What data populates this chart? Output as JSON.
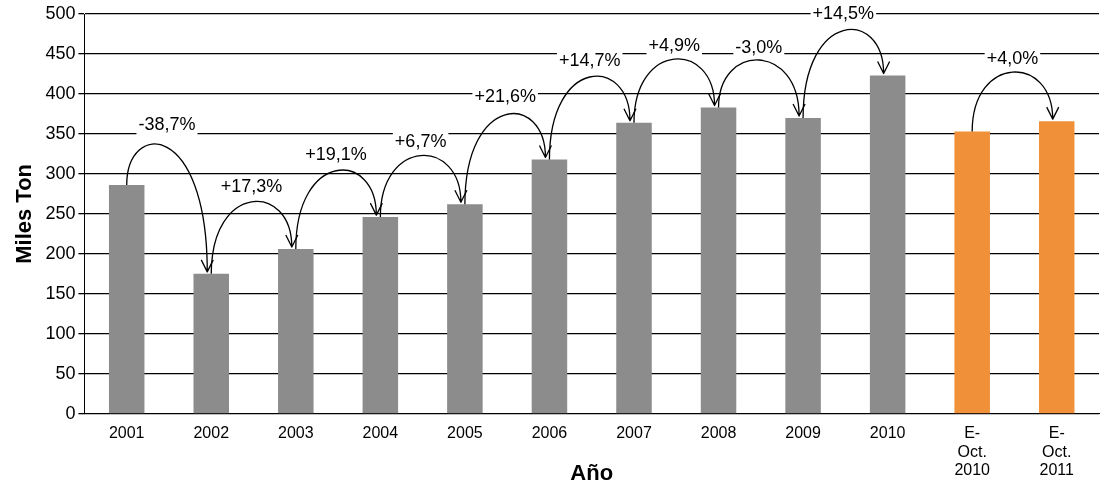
{
  "chart_data": {
    "type": "bar",
    "xlabel": "Año",
    "ylabel": "Miles Ton",
    "categories": [
      "2001",
      "2002",
      "2003",
      "2004",
      "2005",
      "2006",
      "2007",
      "2008",
      "2009",
      "2010",
      "E- Oct. 2010",
      "E- Oct. 2011"
    ],
    "values": [
      286,
      175,
      206,
      246,
      262,
      318,
      364,
      383,
      370,
      423,
      353,
      366
    ],
    "colors": [
      "#8c8c8c",
      "#8c8c8c",
      "#8c8c8c",
      "#8c8c8c",
      "#8c8c8c",
      "#8c8c8c",
      "#8c8c8c",
      "#8c8c8c",
      "#8c8c8c",
      "#8c8c8c",
      "#f0913a",
      "#f0913a"
    ],
    "ylim": [
      0,
      500
    ],
    "yticks": [
      0,
      50,
      100,
      150,
      200,
      250,
      300,
      350,
      400,
      450,
      500
    ],
    "grid": "y",
    "legend": false,
    "annotations": [
      "-38,7%",
      "+17,3%",
      "+19,1%",
      "+6,7%",
      "+21,6%",
      "+14,7%",
      "+4,9%",
      "-3,0%",
      "+14,5%",
      "+4,0%"
    ]
  }
}
